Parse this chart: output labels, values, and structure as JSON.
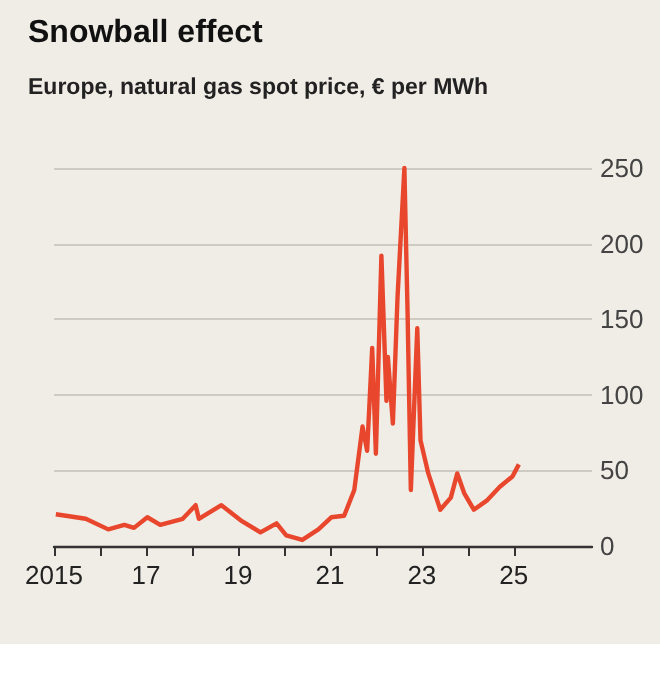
{
  "chart_data": {
    "type": "line",
    "title": "Snowball effect",
    "subtitle": "Europe, natural gas spot price, € per MWh",
    "x": [
      2015.04,
      2015.69,
      2016.18,
      2016.53,
      2016.74,
      2017.03,
      2017.31,
      2017.8,
      2018.08,
      2018.15,
      2018.64,
      2019.06,
      2019.49,
      2019.84,
      2020.05,
      2020.4,
      2020.75,
      2021.03,
      2021.31,
      2021.53,
      2021.71,
      2021.81,
      2021.92,
      2022.0,
      2022.12,
      2022.23,
      2022.26,
      2022.37,
      2022.47,
      2022.62,
      2022.69,
      2022.76,
      2022.9,
      2022.97,
      2023.14,
      2023.4,
      2023.63,
      2023.77,
      2023.92,
      2024.13,
      2024.41,
      2024.69,
      2024.97,
      2025.11
    ],
    "series": [
      {
        "color": "#e8472d",
        "values": [
          21,
          18,
          11,
          14,
          12,
          19,
          14,
          18,
          27,
          18,
          27,
          17,
          9,
          15,
          7,
          4,
          11,
          19,
          20,
          37,
          79,
          63,
          131,
          61,
          192,
          96,
          125,
          81,
          164,
          250,
          153,
          37,
          144,
          70,
          48,
          24,
          32,
          48,
          35,
          24,
          30,
          39,
          46,
          54
        ]
      }
    ],
    "xlim": [
      2015,
      2026.7
    ],
    "xticks": [
      {
        "value": 2015,
        "label": "2015"
      },
      {
        "value": 2016,
        "label": null
      },
      {
        "value": 2017,
        "label": "17"
      },
      {
        "value": 2018,
        "label": null
      },
      {
        "value": 2019,
        "label": "19"
      },
      {
        "value": 2020,
        "label": null
      },
      {
        "value": 2021,
        "label": "21"
      },
      {
        "value": 2022,
        "label": null
      },
      {
        "value": 2023,
        "label": "23"
      },
      {
        "value": 2024,
        "label": null
      },
      {
        "value": 2025,
        "label": "25"
      }
    ],
    "ylim": [
      0,
      250
    ],
    "yticks": [
      0,
      50,
      100,
      150,
      200,
      250
    ],
    "grid": "y",
    "marker": "none",
    "line_style": "solid"
  }
}
